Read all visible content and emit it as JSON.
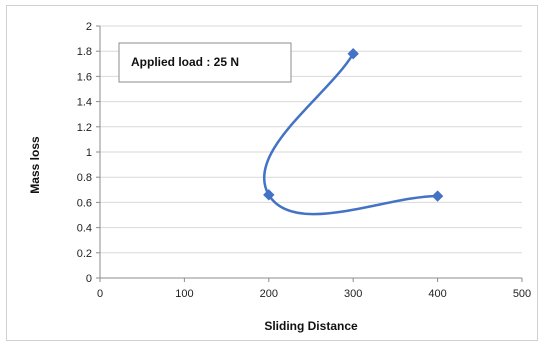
{
  "chart_data": {
    "type": "scatter",
    "title": "",
    "xlabel": "Sliding Distance",
    "ylabel": "Mass loss",
    "xlim": [
      0,
      500
    ],
    "ylim": [
      0,
      2
    ],
    "x_ticks": [
      0,
      100,
      200,
      300,
      400,
      500
    ],
    "y_ticks": [
      0,
      0.2,
      0.4,
      0.6,
      0.8,
      1,
      1.2,
      1.4,
      1.6,
      1.8,
      2
    ],
    "grid": "horizontal",
    "legend": "none",
    "annotation": "Applied load : 25 N",
    "line_style": "smoothed",
    "marker": "diamond",
    "series_color": "#4472C4",
    "series": [
      {
        "points": [
          {
            "x": 300,
            "y": 1.78
          },
          {
            "x": 200,
            "y": 0.66
          },
          {
            "x": 400,
            "y": 0.65
          }
        ]
      }
    ]
  }
}
